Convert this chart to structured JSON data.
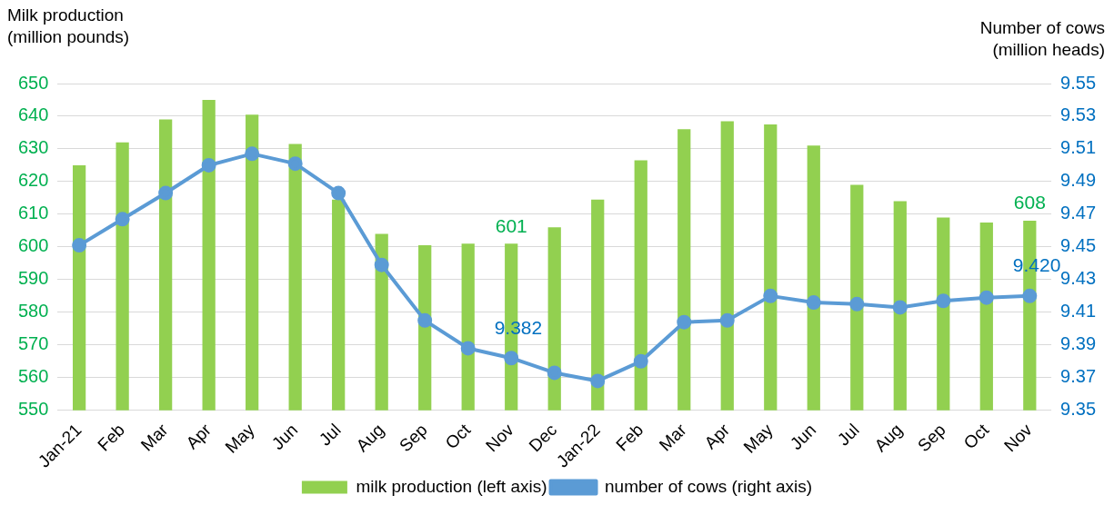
{
  "chart_data": {
    "type": "bar",
    "ylabel": "Milk production\n(million pounds)",
    "y2label": "Number of cows\n(million heads)",
    "categories": [
      "Jan-21",
      "Feb",
      "Mar",
      "Apr",
      "May",
      "Jun",
      "Jul",
      "Aug",
      "Sep",
      "Oct",
      "Nov",
      "Dec",
      "Jan-22",
      "Feb",
      "Mar",
      "Apr",
      "May",
      "Jun",
      "Jul",
      "Aug",
      "Sep",
      "Oct",
      "Nov"
    ],
    "series": [
      {
        "name": "milk production (left axis)",
        "color": "#92d050",
        "values": [
          625,
          632,
          639,
          645,
          640.5,
          631.5,
          614.5,
          604,
          600.5,
          601,
          601,
          606,
          614.5,
          626.5,
          636,
          638.5,
          637.5,
          631,
          619,
          614,
          609,
          607.5,
          608
        ],
        "value_labels": [
          null,
          null,
          null,
          null,
          null,
          null,
          null,
          null,
          null,
          null,
          "601",
          null,
          null,
          null,
          null,
          null,
          null,
          null,
          null,
          null,
          null,
          null,
          "608"
        ]
      },
      {
        "name": "number of cows (right axis)",
        "type": "line",
        "axis": "y2",
        "color": "#5b9bd5",
        "marker": "circle",
        "values": [
          9.451,
          9.467,
          9.483,
          9.5,
          9.507,
          9.501,
          9.483,
          9.439,
          9.405,
          9.388,
          9.382,
          9.373,
          9.368,
          9.38,
          9.404,
          9.405,
          9.42,
          9.416,
          9.415,
          9.413,
          9.417,
          9.419,
          9.42
        ],
        "value_labels": [
          null,
          null,
          null,
          null,
          null,
          null,
          null,
          null,
          null,
          null,
          "9.382",
          null,
          null,
          null,
          null,
          null,
          null,
          null,
          null,
          null,
          null,
          null,
          "9.420"
        ]
      }
    ],
    "ylim": [
      550,
      650
    ],
    "yticks": [
      550,
      560,
      570,
      580,
      590,
      600,
      610,
      620,
      630,
      640,
      650
    ],
    "y2lim": [
      9.35,
      9.55
    ],
    "y2ticks": [
      {
        "value": 9.35,
        "label": "9.35"
      },
      {
        "value": 9.37,
        "label": "9.37"
      },
      {
        "value": 9.39,
        "label": "9.39"
      },
      {
        "value": 9.41,
        "label": "9.41"
      },
      {
        "value": 9.43,
        "label": "9.43"
      },
      {
        "value": 9.45,
        "label": "9.45"
      },
      {
        "value": 9.47,
        "label": "9.47"
      },
      {
        "value": 9.49,
        "label": "9.49"
      },
      {
        "value": 9.51,
        "label": "9.51"
      },
      {
        "value": 9.53,
        "label": "9.53"
      },
      {
        "value": 9.55,
        "label": "9.55"
      }
    ],
    "grid": "y",
    "legend": "bottom"
  }
}
